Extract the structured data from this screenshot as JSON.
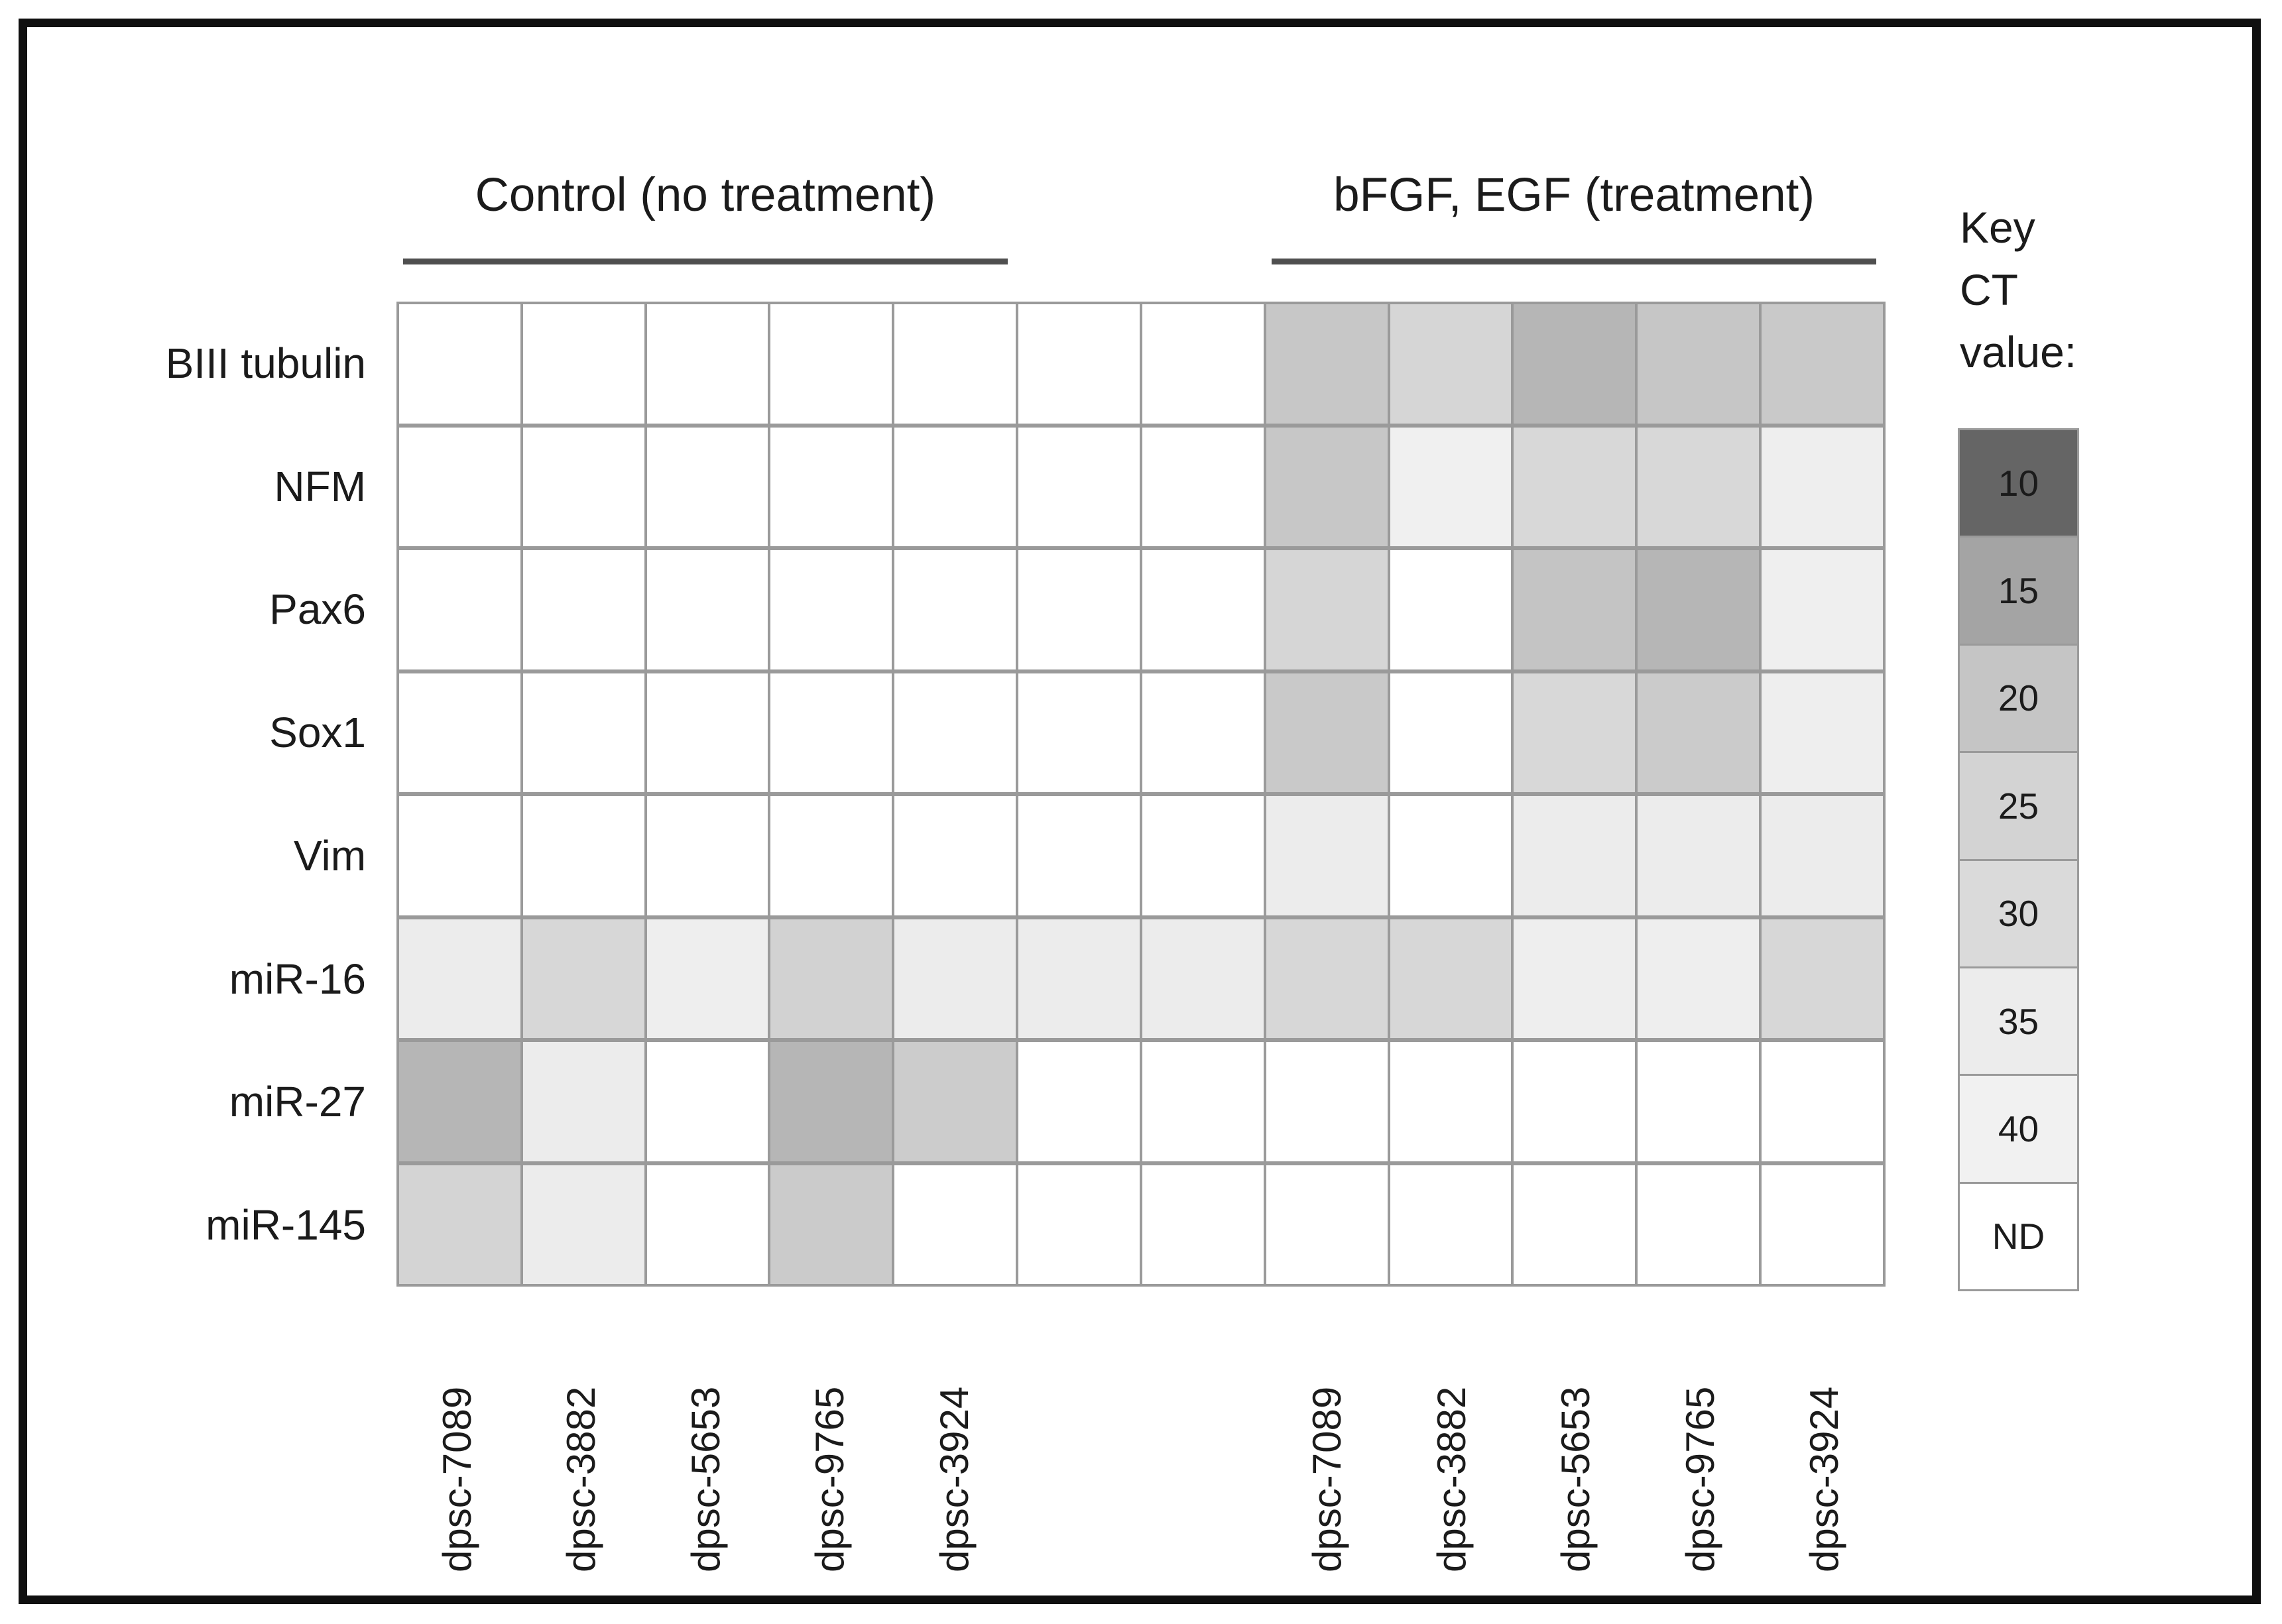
{
  "figure": {
    "description": "Grayscale heatmap of qPCR CT values for neural markers and miRNAs in dpsc lines, control vs bFGF/EGF treatment"
  },
  "chart_data": {
    "type": "heatmap",
    "group_headers": [
      {
        "label": "Control (no treatment)"
      },
      {
        "label": "bFGF, EGF (treatment)"
      }
    ],
    "row_labels": [
      "BIII tubulin",
      "NFM",
      "Pax6",
      "Sox1",
      "Vim",
      "miR-16",
      "miR-27",
      "miR-145"
    ],
    "column_labels": {
      "control": [
        "dpsc-7089",
        "dpsc-3882",
        "dpsc-5653",
        "dpsc-9765",
        "dpsc-3924"
      ],
      "treatment": [
        "dpsc-7089",
        "dpsc-3882",
        "dpsc-5653",
        "dpsc-9765",
        "dpsc-3924"
      ]
    },
    "layout_note": "12 layout columns per row: 5 control, 2 unlabeled spacer columns, 5 treatment",
    "ct_values": [
      [
        "ND",
        "ND",
        "ND",
        "ND",
        "ND",
        null,
        null,
        "20",
        "25",
        "15",
        "20",
        "20"
      ],
      [
        "ND",
        "ND",
        "ND",
        "ND",
        "ND",
        null,
        null,
        "20",
        "40",
        "30",
        "30",
        "35"
      ],
      [
        "ND",
        "ND",
        "ND",
        "ND",
        "ND",
        null,
        null,
        "30",
        "ND",
        "20",
        "15",
        "35"
      ],
      [
        "ND",
        "ND",
        "ND",
        "ND",
        "ND",
        null,
        null,
        "20",
        "ND",
        "30",
        "20",
        "35"
      ],
      [
        "ND",
        "ND",
        "ND",
        "ND",
        "ND",
        null,
        null,
        "35",
        "ND",
        "35",
        "35",
        "35"
      ],
      [
        "35",
        "30",
        "35",
        "25",
        "35",
        "35",
        "35",
        "30",
        "30",
        "35",
        "35",
        "30"
      ],
      [
        "15",
        "35",
        "ND",
        "15",
        "20",
        null,
        null,
        "ND",
        "ND",
        "ND",
        "ND",
        "ND"
      ],
      [
        "25",
        "35",
        "ND",
        "20",
        "ND",
        null,
        null,
        "ND",
        "ND",
        "ND",
        "ND",
        "ND"
      ]
    ],
    "cell_colors": [
      [
        "#ffffff",
        "#ffffff",
        "#ffffff",
        "#ffffff",
        "#ffffff",
        "#ffffff",
        "#ffffff",
        "#c7c7c7",
        "#d6d6d6",
        "#b6b6b6",
        "#c6c6c6",
        "#c9c9c9"
      ],
      [
        "#ffffff",
        "#ffffff",
        "#ffffff",
        "#ffffff",
        "#ffffff",
        "#ffffff",
        "#ffffff",
        "#c7c7c7",
        "#f0f0f0",
        "#d8d8d8",
        "#d8d8d8",
        "#eeeeee"
      ],
      [
        "#ffffff",
        "#ffffff",
        "#ffffff",
        "#ffffff",
        "#ffffff",
        "#ffffff",
        "#ffffff",
        "#d6d6d6",
        "#ffffff",
        "#c4c4c4",
        "#b6b6b6",
        "#efefef"
      ],
      [
        "#ffffff",
        "#ffffff",
        "#ffffff",
        "#ffffff",
        "#ffffff",
        "#ffffff",
        "#ffffff",
        "#c9c9c9",
        "#ffffff",
        "#d8d8d8",
        "#cbcbcb",
        "#eeeeee"
      ],
      [
        "#ffffff",
        "#ffffff",
        "#ffffff",
        "#ffffff",
        "#ffffff",
        "#ffffff",
        "#ffffff",
        "#ececec",
        "#ffffff",
        "#ececec",
        "#ececec",
        "#ececec"
      ],
      [
        "#ececec",
        "#d7d7d7",
        "#eeeeee",
        "#d2d2d2",
        "#ececec",
        "#ececec",
        "#ececec",
        "#d7d7d7",
        "#d7d7d7",
        "#eeeeee",
        "#eeeeee",
        "#d7d7d7"
      ],
      [
        "#b6b6b6",
        "#ececec",
        "#ffffff",
        "#b6b6b6",
        "#cccccc",
        "#ffffff",
        "#ffffff",
        "#ffffff",
        "#ffffff",
        "#ffffff",
        "#ffffff",
        "#ffffff"
      ],
      [
        "#d4d4d4",
        "#ececec",
        "#ffffff",
        "#cbcbcb",
        "#ffffff",
        "#ffffff",
        "#ffffff",
        "#ffffff",
        "#ffffff",
        "#ffffff",
        "#ffffff",
        "#ffffff"
      ]
    ],
    "key": {
      "title": "Key\nCT\nvalue:",
      "entries": [
        {
          "label": "10",
          "color": "#656565"
        },
        {
          "label": "15",
          "color": "#a4a4a4"
        },
        {
          "label": "20",
          "color": "#c5c5c5"
        },
        {
          "label": "25",
          "color": "#d3d3d3"
        },
        {
          "label": "30",
          "color": "#dadada"
        },
        {
          "label": "35",
          "color": "#ececec"
        },
        {
          "label": "40",
          "color": "#f1f1f1"
        },
        {
          "label": "ND",
          "color": "#ffffff"
        }
      ]
    }
  },
  "styling": {
    "grid_line_color": "#9a9a9a",
    "underline_color": "#4f4f4f",
    "frame_color": "#0f0f0f",
    "text_color": "#1b1b1b"
  }
}
